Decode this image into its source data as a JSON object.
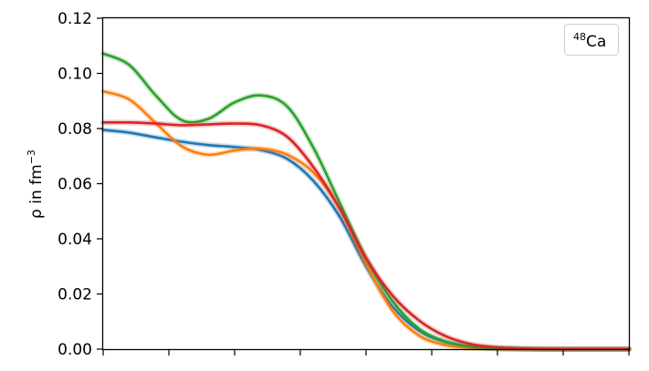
{
  "chart_data": {
    "type": "line",
    "ylabel_parts": {
      "base": "ρ in fm",
      "sup": "−3"
    },
    "annotation": {
      "sup": "48",
      "text": "Ca"
    },
    "ylim": [
      0,
      0.12
    ],
    "xlim": [
      0,
      10
    ],
    "yticks": [
      "0.00",
      "0.02",
      "0.04",
      "0.06",
      "0.08",
      "0.10",
      "0.12"
    ],
    "grid": false,
    "series": [
      {
        "color": "#1f77b4",
        "x": [
          0,
          0.5,
          1,
          1.5,
          2,
          2.5,
          3,
          3.5,
          4,
          4.5,
          5,
          5.5,
          6,
          6.5,
          7,
          7.5,
          8,
          8.5,
          9,
          9.5,
          10
        ],
        "values": [
          0.0795,
          0.0785,
          0.0768,
          0.0752,
          0.074,
          0.0733,
          0.0722,
          0.069,
          0.061,
          0.048,
          0.03,
          0.0155,
          0.0068,
          0.0026,
          0.0009,
          0.0003,
          0.0001,
          0.0,
          0.0,
          0.0,
          0.0
        ]
      },
      {
        "color": "#ff7f0e",
        "x": [
          0,
          0.5,
          1,
          1.5,
          2,
          2.5,
          3,
          3.5,
          4,
          4.5,
          5,
          5.5,
          6,
          6.5,
          7,
          7.5,
          8,
          8.5,
          9,
          9.5,
          10
        ],
        "values": [
          0.0935,
          0.0905,
          0.082,
          0.0735,
          0.0705,
          0.072,
          0.0727,
          0.0705,
          0.064,
          0.051,
          0.031,
          0.014,
          0.005,
          0.0015,
          0.0004,
          0.0001,
          0.0,
          0.0,
          0.0,
          0.0,
          0.0
        ]
      },
      {
        "color": "#2ca02c",
        "x": [
          0,
          0.5,
          1,
          1.5,
          2,
          2.5,
          3,
          3.5,
          4,
          4.5,
          5,
          5.5,
          6,
          6.5,
          7,
          7.5,
          8,
          8.5,
          9,
          9.5,
          10
        ],
        "values": [
          0.1072,
          0.103,
          0.092,
          0.083,
          0.0835,
          0.0895,
          0.092,
          0.088,
          0.073,
          0.053,
          0.033,
          0.0175,
          0.0075,
          0.0028,
          0.0009,
          0.0003,
          0.0001,
          0.0,
          0.0,
          0.0,
          0.0
        ]
      },
      {
        "color": "#d62728",
        "x": [
          0,
          0.5,
          1,
          1.5,
          2,
          2.5,
          3,
          3.5,
          4,
          4.5,
          5,
          5.5,
          6,
          6.5,
          7,
          7.5,
          8,
          8.5,
          9,
          9.5,
          10
        ],
        "values": [
          0.0822,
          0.0822,
          0.0818,
          0.0812,
          0.0815,
          0.0818,
          0.0812,
          0.077,
          0.066,
          0.051,
          0.033,
          0.0195,
          0.0105,
          0.0048,
          0.0018,
          0.0006,
          0.0002,
          0.0,
          0.0,
          0.0,
          0.0
        ]
      }
    ]
  }
}
